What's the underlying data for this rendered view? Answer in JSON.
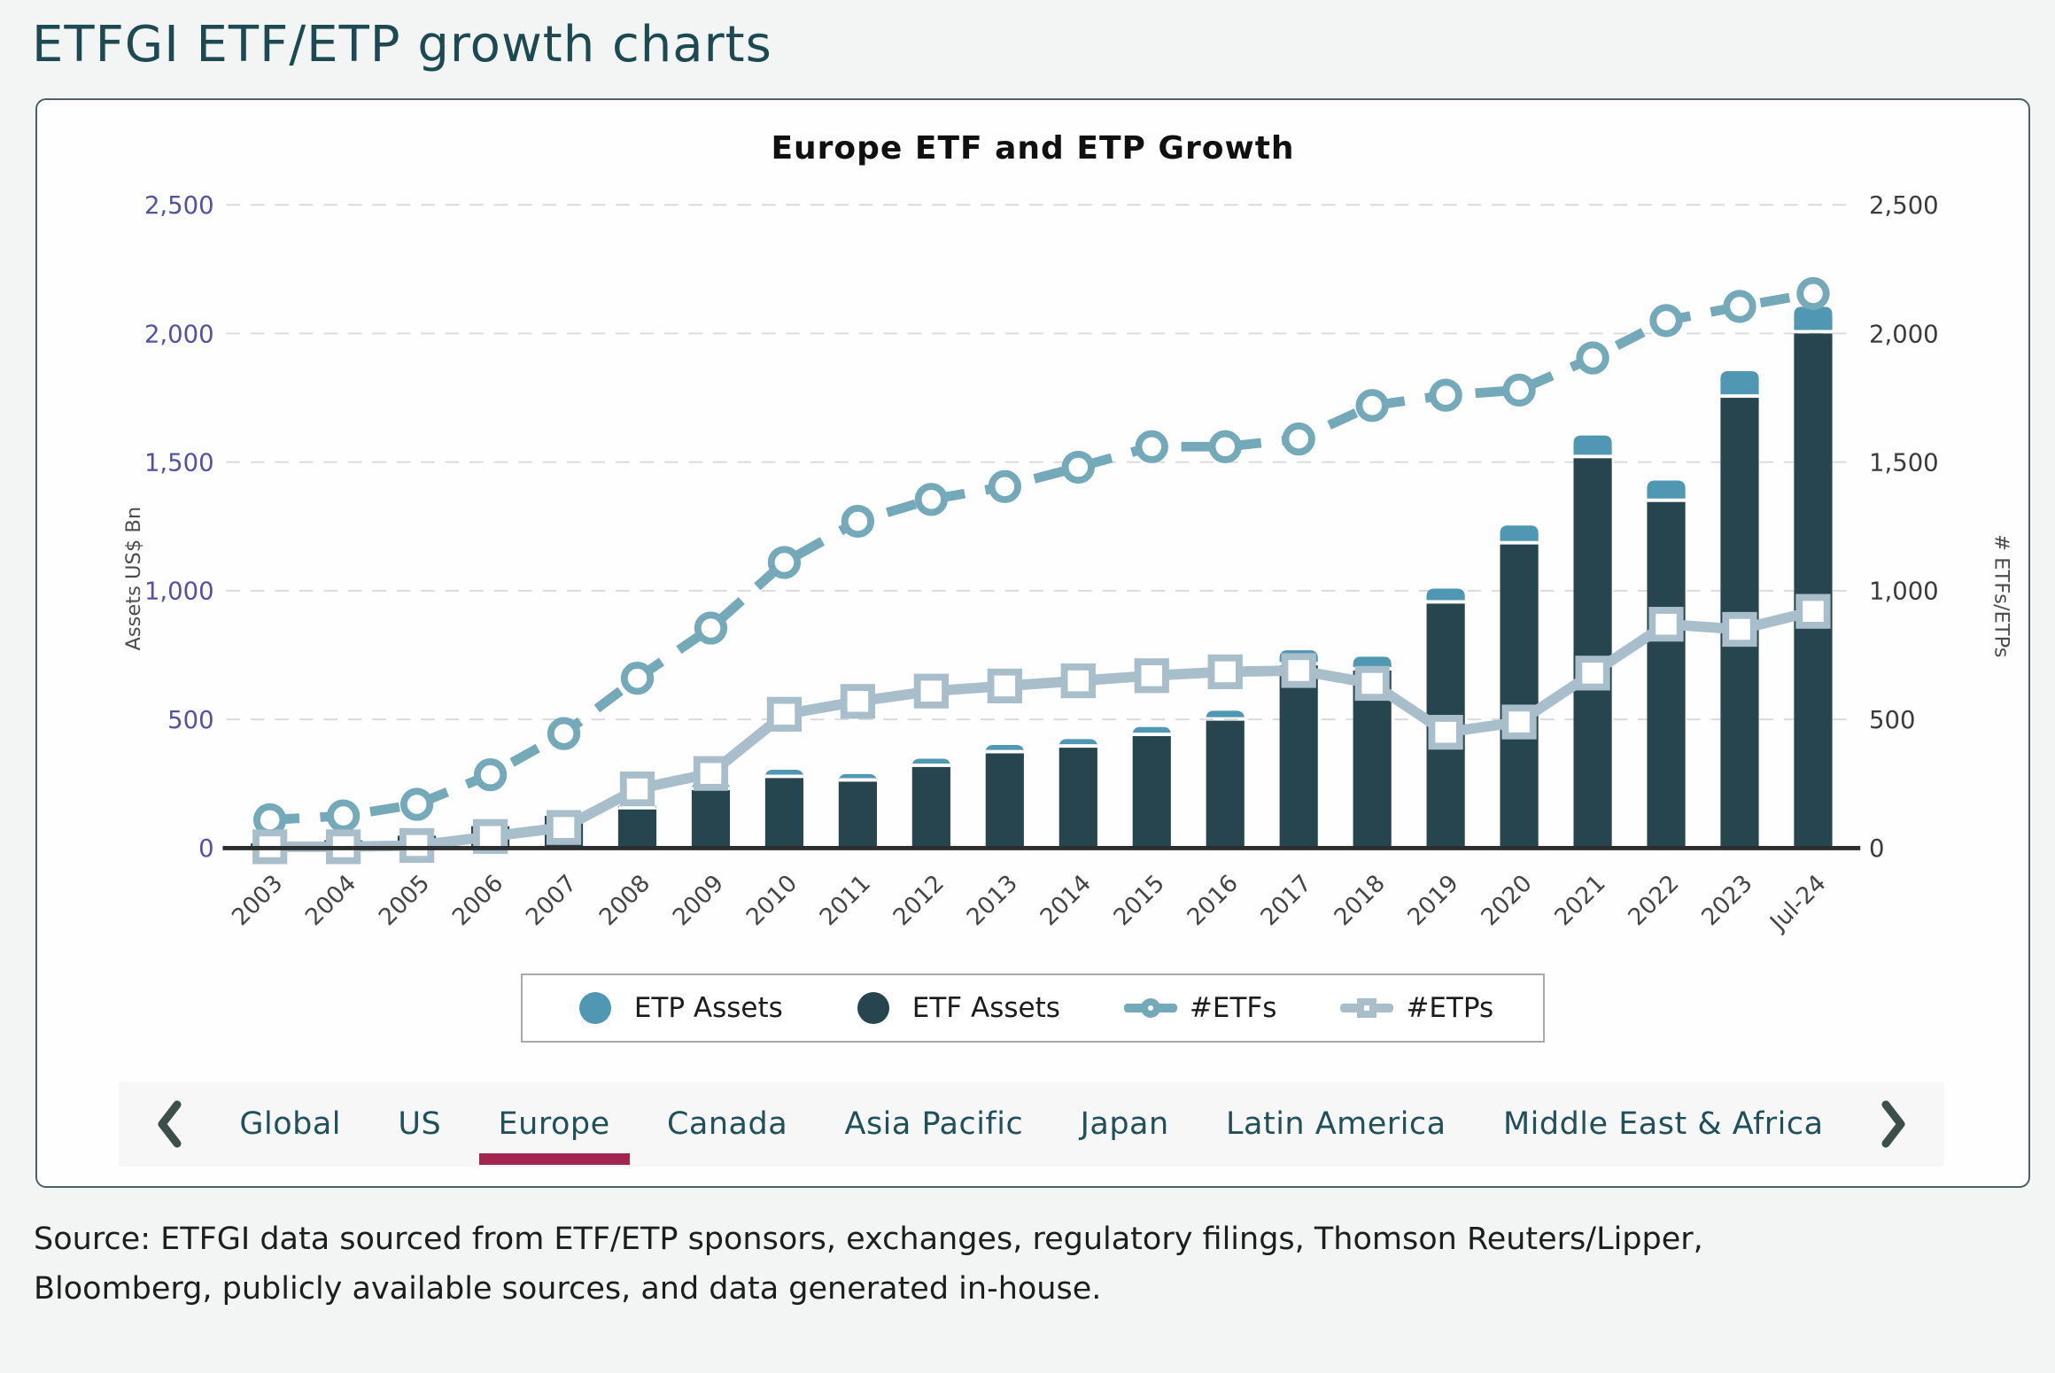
{
  "page": {
    "title": "ETFGI ETF/ETP growth charts",
    "source_line1": "Source: ETFGI data sourced from ETF/ETP sponsors, exchanges, regulatory filings, Thomson Reuters/Lipper,",
    "source_line2": "Bloomberg, publicly available sources, and data generated in-house."
  },
  "chart_data": {
    "type": "bar",
    "subtype": "stacked-bars-with-two-lines",
    "title": "Europe ETF and ETP Growth",
    "categories": [
      "2003",
      "2004",
      "2005",
      "2006",
      "2007",
      "2008",
      "2009",
      "2010",
      "2011",
      "2012",
      "2013",
      "2014",
      "2015",
      "2016",
      "2017",
      "2018",
      "2019",
      "2020",
      "2021",
      "2022",
      "2023",
      "Jul-24"
    ],
    "series": [
      {
        "name": "ETP Assets",
        "role": "bar-top",
        "axis": "left",
        "color": "#4f97b2",
        "values": [
          2,
          3,
          4,
          6,
          9,
          12,
          17,
          19,
          16,
          19,
          19,
          20,
          22,
          25,
          45,
          40,
          45,
          60,
          75,
          70,
          90,
          90
        ]
      },
      {
        "name": "ETF Assets",
        "role": "bar-base",
        "axis": "left",
        "color": "#27454f",
        "values": [
          18,
          30,
          48,
          85,
          125,
          150,
          225,
          272,
          258,
          315,
          368,
          390,
          435,
          495,
          710,
          690,
          950,
          1180,
          1515,
          1345,
          1750,
          2000
        ]
      },
      {
        "name": "#ETFs",
        "role": "line-dashed",
        "marker": "circle",
        "axis": "right",
        "color": "#74a9b9",
        "values": [
          110,
          125,
          170,
          285,
          445,
          660,
          855,
          1110,
          1270,
          1355,
          1405,
          1480,
          1560,
          1560,
          1590,
          1720,
          1760,
          1780,
          1905,
          2050,
          2105,
          2155
        ]
      },
      {
        "name": "#ETPs",
        "role": "line-solid",
        "marker": "square",
        "axis": "right",
        "color": "#a9becb",
        "values": [
          5,
          5,
          10,
          45,
          80,
          230,
          290,
          520,
          570,
          610,
          630,
          650,
          670,
          685,
          690,
          640,
          450,
          490,
          680,
          870,
          850,
          920
        ]
      }
    ],
    "left_axis": {
      "label": "Assets US$ Bn",
      "max": 2500,
      "tick_values": [
        0,
        500,
        1000,
        1500,
        2000,
        2500
      ],
      "tick_labels": [
        "0",
        "500",
        "1,000",
        "1,500",
        "2,000",
        "2,500"
      ]
    },
    "right_axis": {
      "label": "# ETFs/ETPs",
      "max": 2500,
      "tick_values": [
        0,
        500,
        1000,
        1500,
        2000,
        2500
      ],
      "tick_labels": [
        "0",
        "500",
        "1,000",
        "1,500",
        "2,000",
        "2,500"
      ]
    },
    "grid": "horizontal-dashed",
    "legend_position": "bottom-center",
    "legend_items": [
      "ETP Assets",
      "ETF Assets",
      "#ETFs",
      "#ETPs"
    ]
  },
  "tabs": {
    "prev_icon": "chevron-left",
    "next_icon": "chevron-right",
    "items": [
      {
        "label": "Global",
        "active": false
      },
      {
        "label": "US",
        "active": false
      },
      {
        "label": "Europe",
        "active": true
      },
      {
        "label": "Canada",
        "active": false
      },
      {
        "label": "Asia Pacific",
        "active": false
      },
      {
        "label": "Japan",
        "active": false
      },
      {
        "label": "Latin America",
        "active": false
      },
      {
        "label": "Middle East & Africa",
        "active": false
      }
    ]
  },
  "colors": {
    "page_bg": "#f2f5f4",
    "card_border": "#4d6165",
    "title_text": "#1d4a52",
    "tab_text": "#20505a",
    "tab_underline": "#a32450",
    "left_tick": "#5151a6",
    "right_tick": "#3b3b3b",
    "etp_assets": "#4f97b2",
    "etf_assets": "#27454f",
    "etfs_line": "#74a9b9",
    "etps_line": "#a9becb"
  }
}
